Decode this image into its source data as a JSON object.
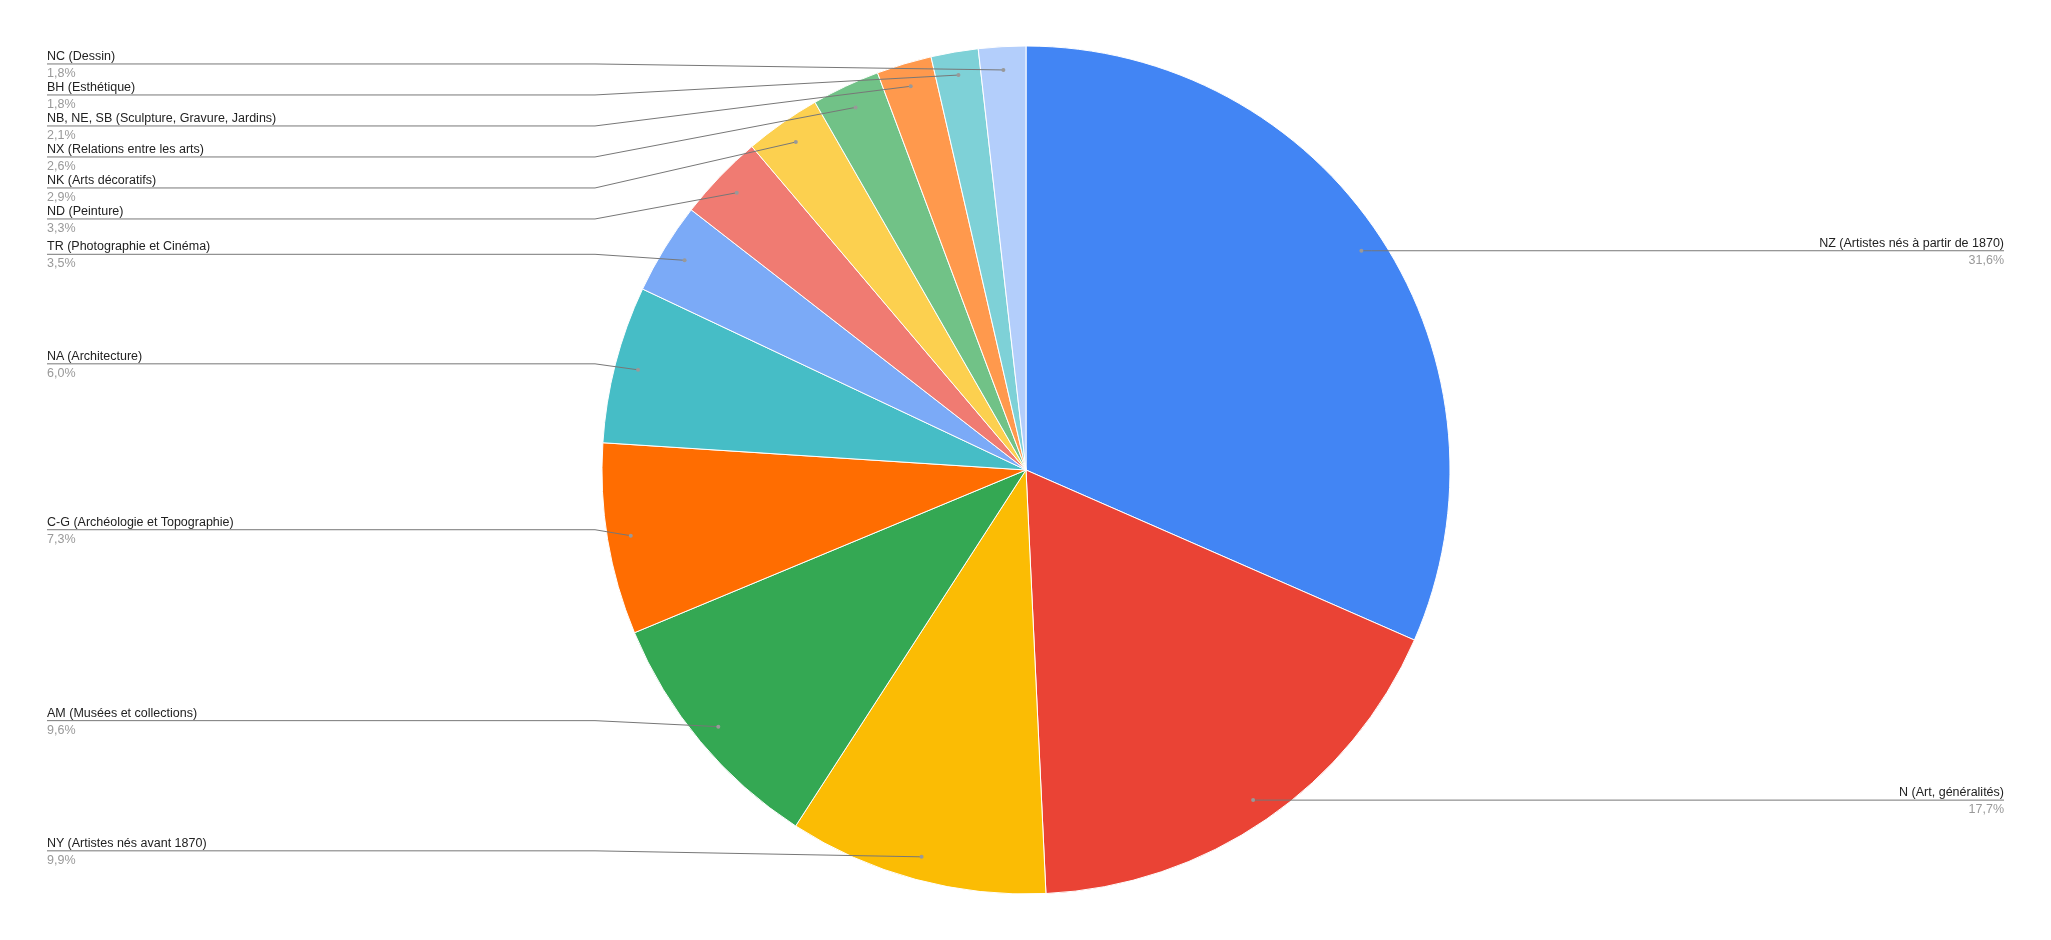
{
  "chart_data": {
    "type": "pie",
    "categories": [
      "NZ (Artistes nés à partir de 1870)",
      "N (Art, généralités)",
      "NY (Artistes nés avant 1870)",
      "AM (Musées et collections)",
      "C-G (Archéologie et Topographie)",
      "NA (Architecture)",
      "TR (Photographie et Cinéma)",
      "ND (Peinture)",
      "NK (Arts décoratifs)",
      "NX (Relations entre les arts)",
      "NB, NE, SB (Sculpture, Gravure, Jardins)",
      "BH (Esthétique)",
      "NC (Dessin)"
    ],
    "values": [
      31.6,
      17.7,
      9.9,
      9.6,
      7.3,
      6.0,
      3.5,
      3.3,
      2.9,
      2.6,
      2.1,
      1.8,
      1.8
    ],
    "value_labels": [
      "31,6%",
      "17,7%",
      "9,9%",
      "9,6%",
      "7,3%",
      "6,0%",
      "3,5%",
      "3,3%",
      "2,9%",
      "2,6%",
      "2,1%",
      "1,8%",
      "1,8%"
    ],
    "colors": [
      "#4285f4",
      "#ea4335",
      "#fbbc04",
      "#34a853",
      "#ff6d01",
      "#46bdc6",
      "#7baaf7",
      "#f07b72",
      "#fcd04f",
      "#71c287",
      "#ff994d",
      "#7ed1d7",
      "#b3cefb"
    ]
  }
}
